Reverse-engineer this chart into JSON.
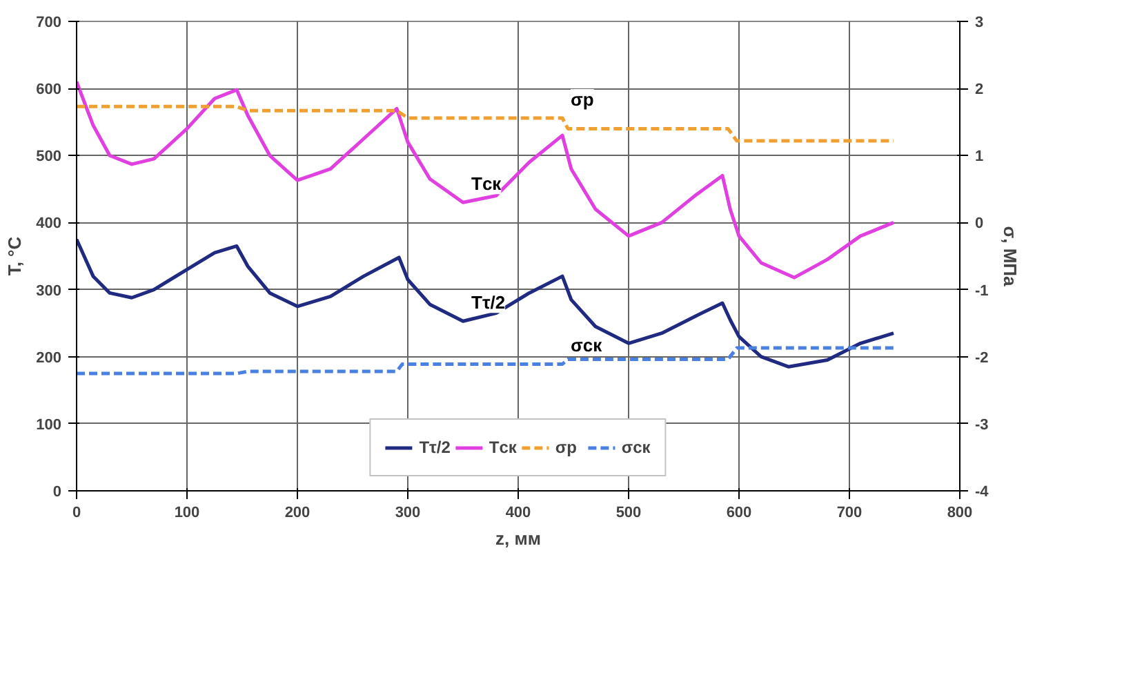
{
  "chart_data": {
    "type": "line",
    "xlabel": "z, мм",
    "ylabel": "T, °C",
    "y2label": "σ, МПа",
    "xlim": [
      0,
      800
    ],
    "xticks": [
      0,
      100,
      200,
      300,
      400,
      500,
      600,
      700,
      800
    ],
    "ylim": [
      0,
      700
    ],
    "yticks": [
      0,
      100,
      200,
      300,
      400,
      500,
      600,
      700
    ],
    "y2lim": [
      -4,
      3
    ],
    "y2ticks": [
      -4,
      -3,
      -2,
      -1,
      0,
      1,
      2,
      3
    ],
    "grid": true,
    "legend": "bottom",
    "marker": "none",
    "series": [
      {
        "name": "Tτ/2",
        "color": "#1f2a80",
        "line_style": "solid",
        "x": [
          0,
          15,
          30,
          50,
          70,
          100,
          125,
          145,
          155,
          175,
          200,
          230,
          260,
          292,
          300,
          320,
          350,
          380,
          410,
          440,
          448,
          470,
          500,
          530,
          560,
          585,
          592,
          600,
          620,
          645,
          680,
          710,
          740
        ],
        "values": [
          375,
          320,
          295,
          288,
          300,
          330,
          355,
          365,
          335,
          295,
          275,
          290,
          320,
          348,
          315,
          278,
          253,
          265,
          295,
          320,
          285,
          245,
          220,
          235,
          260,
          280,
          255,
          230,
          200,
          185,
          195,
          220,
          235
        ]
      },
      {
        "name": "Tск",
        "color": "#e040e0",
        "line_style": "solid",
        "x": [
          0,
          15,
          30,
          50,
          70,
          100,
          125,
          145,
          155,
          175,
          200,
          230,
          260,
          290,
          300,
          320,
          350,
          380,
          410,
          440,
          448,
          470,
          500,
          530,
          560,
          585,
          592,
          600,
          620,
          650,
          680,
          710,
          740
        ],
        "values": [
          610,
          545,
          500,
          487,
          495,
          540,
          585,
          598,
          560,
          500,
          463,
          480,
          525,
          570,
          520,
          465,
          430,
          440,
          490,
          530,
          480,
          420,
          380,
          400,
          440,
          470,
          420,
          380,
          340,
          318,
          345,
          380,
          400
        ]
      },
      {
        "name": "σр",
        "color": "#f0a030",
        "line_style": "dashed",
        "axis": "y2",
        "x": [
          0,
          145,
          155,
          290,
          300,
          440,
          445,
          590,
          598,
          740
        ],
        "values": [
          1.73,
          1.73,
          1.67,
          1.67,
          1.56,
          1.56,
          1.4,
          1.4,
          1.22,
          1.22
        ]
      },
      {
        "name": "σск",
        "color": "#4a80e0",
        "line_style": "dashed",
        "axis": "y2",
        "x": [
          0,
          145,
          155,
          290,
          295,
          440,
          445,
          590,
          598,
          740
        ],
        "values": [
          -2.25,
          -2.25,
          -2.22,
          -2.22,
          -2.11,
          -2.11,
          -2.04,
          -2.04,
          -1.87,
          -1.87
        ]
      }
    ]
  }
}
